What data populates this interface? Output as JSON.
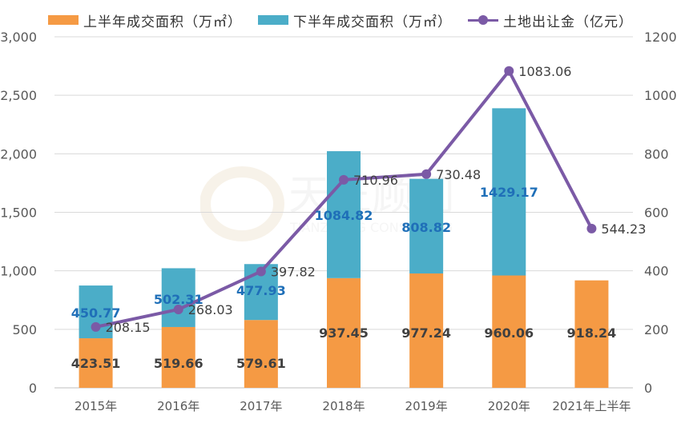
{
  "chart_data": {
    "type": "bar",
    "stacked": true,
    "categories": [
      "2015年",
      "2016年",
      "2017年",
      "2018年",
      "2019年",
      "2020年",
      "2021年上半年"
    ],
    "series": [
      {
        "name": "上半年成交面积（万㎡）",
        "axis": "left",
        "color": "#f59a44",
        "values": [
          423.51,
          519.66,
          579.61,
          937.45,
          977.24,
          960.06,
          918.24
        ],
        "labels": [
          "423.51",
          "519.66",
          "579.61",
          "937.45",
          "977.24",
          "960.06",
          "918.24"
        ]
      },
      {
        "name": "下半年成交面积（万㎡）",
        "axis": "left",
        "color": "#4badc8",
        "values": [
          450.77,
          502.31,
          477.93,
          1084.82,
          808.82,
          1429.17,
          null
        ],
        "labels": [
          "450.77",
          "502.31",
          "477.93",
          "1084.82",
          "808.82",
          "1429.17",
          null
        ]
      },
      {
        "name": "土地出让金（亿元）",
        "axis": "right",
        "type": "line",
        "color": "#7b5aa6",
        "values": [
          208.15,
          268.03,
          397.82,
          710.96,
          730.48,
          1083.06,
          544.23
        ],
        "labels": [
          "208.15",
          "268.03",
          "397.82",
          "710.96",
          "730.48",
          "1083.06",
          "544.23"
        ]
      }
    ],
    "y_left": {
      "min": 0,
      "max": 3000,
      "ticks": [
        0,
        500,
        1000,
        1500,
        2000,
        2500,
        3000
      ],
      "tick_labels": [
        "0",
        "500",
        "1,000",
        "1,500",
        "2,000",
        "2,500",
        "3,000"
      ]
    },
    "y_right": {
      "min": 0,
      "max": 1200,
      "ticks": [
        0,
        200,
        400,
        600,
        800,
        1000,
        1200
      ],
      "tick_labels": [
        "0",
        "200",
        "400",
        "600",
        "800",
        "1000",
        "1200"
      ]
    },
    "legend_position": "top",
    "grid": true
  },
  "watermark": {
    "title": "天正顾问",
    "subtitle": "TIANZHENG CONSULTING"
  }
}
